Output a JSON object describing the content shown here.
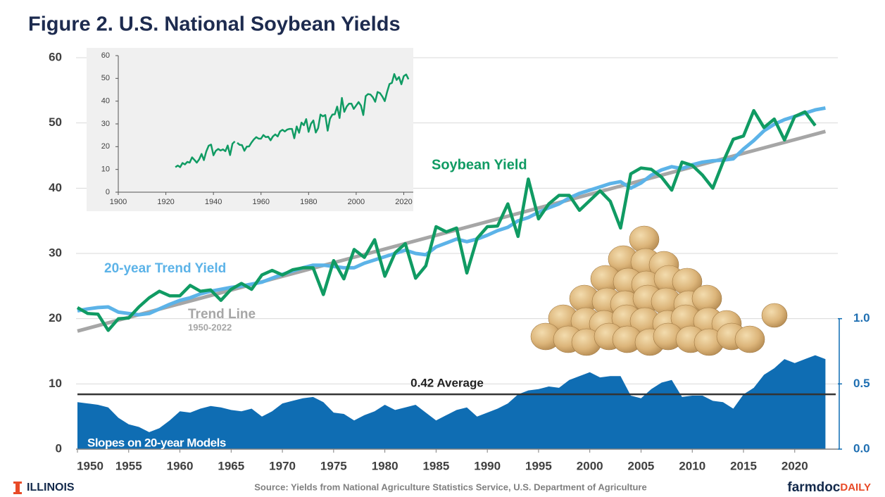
{
  "chart_data": {
    "type": "line",
    "title": "Figure 2. U.S. National Soybean Yields",
    "x": [
      1950,
      1951,
      1952,
      1953,
      1954,
      1955,
      1956,
      1957,
      1958,
      1959,
      1960,
      1961,
      1962,
      1963,
      1964,
      1965,
      1966,
      1967,
      1968,
      1969,
      1970,
      1971,
      1972,
      1973,
      1974,
      1975,
      1976,
      1977,
      1978,
      1979,
      1980,
      1981,
      1982,
      1983,
      1984,
      1985,
      1986,
      1987,
      1988,
      1989,
      1990,
      1991,
      1992,
      1993,
      1994,
      1995,
      1996,
      1997,
      1998,
      1999,
      2000,
      2001,
      2002,
      2003,
      2004,
      2005,
      2006,
      2007,
      2008,
      2009,
      2010,
      2011,
      2012,
      2013,
      2014,
      2015,
      2016,
      2017,
      2018,
      2019,
      2020,
      2021,
      2022,
      2023
    ],
    "xlim": [
      1950,
      2024
    ],
    "xticks": [
      1950,
      1955,
      1960,
      1965,
      1970,
      1975,
      1980,
      1985,
      1990,
      1995,
      2000,
      2005,
      2010,
      2015,
      2020
    ],
    "ylim": [
      0,
      60
    ],
    "yticks": [
      0,
      10,
      20,
      30,
      40,
      50,
      60
    ],
    "y2lim": [
      0,
      3
    ],
    "y2ticks": [
      {
        "value": 0,
        "label": "0.0"
      },
      0.5,
      {
        "value": 1,
        "label": "1.0"
      }
    ],
    "grid": true,
    "series": [
      {
        "name": "Soybean Yield",
        "color": "#109b63",
        "values": [
          21.7,
          20.8,
          20.7,
          18.2,
          20.0,
          20.1,
          21.8,
          23.2,
          24.2,
          23.5,
          23.5,
          25.1,
          24.2,
          24.4,
          22.8,
          24.5,
          25.4,
          24.5,
          26.7,
          27.4,
          26.7,
          27.5,
          27.8,
          27.8,
          23.7,
          28.9,
          26.1,
          30.6,
          29.4,
          32.1,
          26.5,
          30.1,
          31.5,
          26.2,
          28.1,
          34.1,
          33.3,
          33.9,
          27.0,
          32.3,
          34.1,
          34.2,
          37.6,
          32.6,
          41.4,
          35.3,
          37.6,
          38.9,
          38.9,
          36.6,
          38.1,
          39.6,
          38.0,
          33.9,
          42.2,
          43.1,
          42.9,
          41.7,
          39.7,
          44.0,
          43.5,
          42.0,
          40.0,
          44.0,
          47.5,
          48.0,
          51.9,
          49.3,
          50.6,
          47.4,
          51.0,
          51.7,
          49.6,
          null
        ]
      },
      {
        "name": "20-year Trend Yield",
        "color": "#5cb3e8",
        "values": [
          21.2,
          21.5,
          21.7,
          21.8,
          21.0,
          20.8,
          20.6,
          20.8,
          21.5,
          22.2,
          22.8,
          23.2,
          23.8,
          24.2,
          24.5,
          24.8,
          25.0,
          25.3,
          25.6,
          26.2,
          26.8,
          27.3,
          27.8,
          28.2,
          28.2,
          28.0,
          27.8,
          27.8,
          28.5,
          29.0,
          29.5,
          30.0,
          30.5,
          30.0,
          29.8,
          31.0,
          31.6,
          32.2,
          31.8,
          32.2,
          32.8,
          33.5,
          34.0,
          35.0,
          35.5,
          36.3,
          37.0,
          37.6,
          38.5,
          39.2,
          39.7,
          40.2,
          40.7,
          41.0,
          40.0,
          40.8,
          42.0,
          42.8,
          43.3,
          43.0,
          43.6,
          44.0,
          44.2,
          44.3,
          44.5,
          46.0,
          47.3,
          48.8,
          49.8,
          50.5,
          51.0,
          51.5,
          52.0,
          52.3
        ]
      },
      {
        "name": "Slopes on 20-year Models",
        "color": "#0f6db3",
        "axis": "y2",
        "values": [
          0.36,
          0.35,
          0.34,
          0.32,
          0.24,
          0.19,
          0.17,
          0.13,
          0.16,
          0.22,
          0.29,
          0.28,
          0.31,
          0.33,
          0.32,
          0.3,
          0.29,
          0.31,
          0.25,
          0.29,
          0.35,
          0.37,
          0.39,
          0.4,
          0.36,
          0.28,
          0.27,
          0.22,
          0.26,
          0.29,
          0.34,
          0.3,
          0.32,
          0.34,
          0.28,
          0.22,
          0.26,
          0.3,
          0.32,
          0.25,
          0.28,
          0.31,
          0.35,
          0.42,
          0.45,
          0.46,
          0.48,
          0.47,
          0.53,
          0.56,
          0.59,
          0.55,
          0.56,
          0.56,
          0.41,
          0.39,
          0.46,
          0.51,
          0.53,
          0.4,
          0.41,
          0.41,
          0.37,
          0.36,
          0.31,
          0.42,
          0.47,
          0.57,
          0.62,
          0.69,
          0.66,
          0.69,
          0.72,
          0.69
        ]
      }
    ],
    "trend_line": {
      "name": "Trend Line",
      "period": "1950-2022",
      "color": "#a6a6a6",
      "x": [
        1950,
        2023
      ],
      "values": [
        18.1,
        48.7
      ]
    },
    "average": {
      "value": 0.42,
      "label": "0.42 Average",
      "axis": "y2",
      "color": "#333333"
    },
    "inset": {
      "type": "line",
      "color": "#109b63",
      "x": [
        1924,
        1925,
        1926,
        1927,
        1928,
        1929,
        1930,
        1931,
        1932,
        1933,
        1934,
        1935,
        1936,
        1937,
        1938,
        1939,
        1940,
        1941,
        1942,
        1943,
        1944,
        1945,
        1946,
        1947,
        1948,
        1949
      ],
      "values": [
        11.0,
        11.7,
        11.0,
        12.8,
        12.2,
        13.3,
        13.0,
        15.3,
        14.2,
        13.0,
        14.4,
        16.8,
        14.1,
        17.9,
        20.4,
        20.9,
        16.2,
        18.2,
        19.0,
        18.3,
        18.8,
        18.0,
        20.5,
        16.3,
        21.3,
        22.3
      ],
      "xlim": [
        1900,
        2024
      ],
      "xticks": [
        1900,
        1920,
        1940,
        1960,
        1980,
        2000,
        2020
      ],
      "ylim": [
        0,
        60
      ],
      "yticks": [
        0,
        10,
        20,
        30,
        40,
        50,
        60
      ]
    }
  },
  "footer": {
    "logo_left": "ILLINOIS",
    "source": "Source:  Yields from National Agriculture Statistics Service, U.S. Department of Agriculture",
    "logo_right_a": "farmdoc",
    "logo_right_b": "DAILY"
  }
}
